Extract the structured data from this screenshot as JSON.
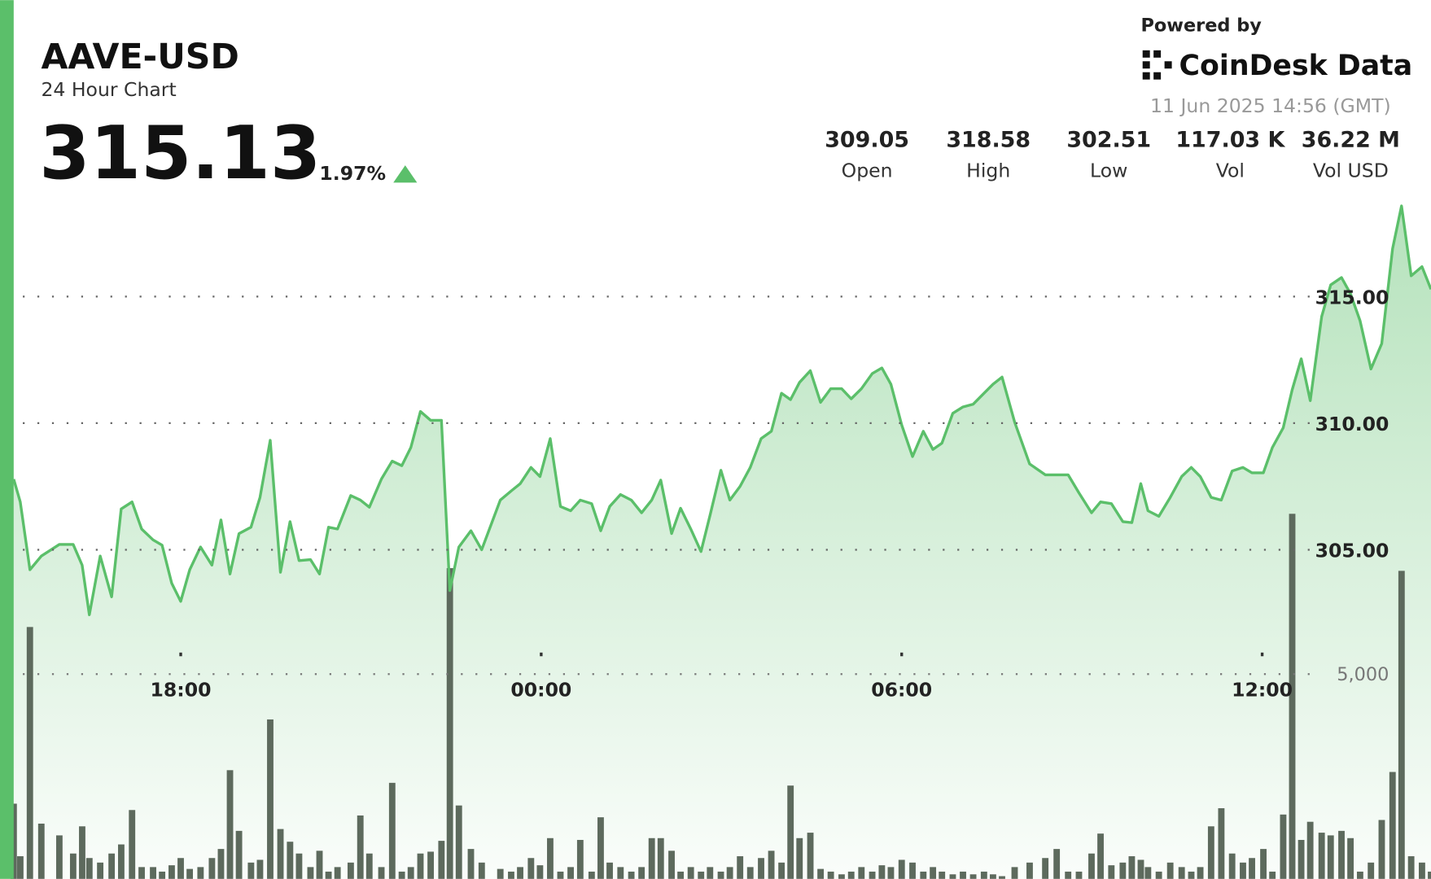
{
  "header": {
    "powered_by": "Powered by",
    "brand": "CoinDesk Data",
    "timestamp": "11 Jun 2025 14:56 (GMT)",
    "price": "315.13",
    "change": "1.97%"
  },
  "stats": [
    {
      "value": "309.05",
      "label": "Open"
    },
    {
      "value": "318.58",
      "label": "High"
    },
    {
      "value": "302.51",
      "label": "Low"
    },
    {
      "value": "117.03 K",
      "label": "Vol"
    },
    {
      "value": "36.22 M",
      "label": "Vol USD"
    }
  ],
  "chart_data": {
    "type": "line",
    "title": "AAVE-USD",
    "subtitle": "24 Hour Chart",
    "x": [
      -8.78,
      -8.67,
      -8.51,
      -8.32,
      -8.02,
      -7.79,
      -7.64,
      -7.52,
      -7.34,
      -7.15,
      -6.99,
      -6.81,
      -6.65,
      -6.46,
      -6.31,
      -6.15,
      -6.0,
      -5.85,
      -5.67,
      -5.48,
      -5.33,
      -5.18,
      -5.03,
      -4.83,
      -4.68,
      -4.51,
      -4.34,
      -4.18,
      -4.03,
      -3.84,
      -3.69,
      -3.54,
      -3.39,
      -3.17,
      -3.01,
      -2.86,
      -2.66,
      -2.48,
      -2.32,
      -2.17,
      -2.01,
      -1.84,
      -1.66,
      -1.52,
      -1.37,
      -1.17,
      -0.99,
      -0.68,
      -0.5,
      -0.35,
      -0.17,
      -0.02,
      0.15,
      0.32,
      0.49,
      0.65,
      0.84,
      0.99,
      1.14,
      1.32,
      1.5,
      1.67,
      1.84,
      1.99,
      2.17,
      2.32,
      2.49,
      2.66,
      2.81,
      2.99,
      3.14,
      3.31,
      3.48,
      3.66,
      3.83,
      4.0,
      4.15,
      4.3,
      4.48,
      4.65,
      4.82,
      5.0,
      5.16,
      5.33,
      5.51,
      5.67,
      5.82,
      6.0,
      6.18,
      6.36,
      6.52,
      6.67,
      6.85,
      7.02,
      7.19,
      7.37,
      7.52,
      7.67,
      7.88,
      8.13,
      8.39,
      8.58,
      8.77,
      8.95,
      9.16,
      9.31,
      9.49,
      9.68,
      9.83,
      9.98,
      10.1,
      10.28,
      10.47,
      10.66,
      10.82,
      10.97,
      11.15,
      11.32,
      11.5,
      11.68,
      11.83,
      12.02,
      12.17,
      12.35,
      12.5,
      12.65,
      12.8,
      12.99,
      13.14,
      13.32,
      13.47,
      13.63,
      13.81,
      13.99,
      14.17,
      14.32,
      14.48,
      14.66,
      14.81
    ],
    "series": [
      {
        "color": "#5bbf6a",
        "values": [
          307.79,
          306.89,
          304.21,
          304.75,
          305.21,
          305.21,
          304.39,
          302.43,
          304.75,
          303.14,
          306.61,
          306.89,
          305.82,
          305.39,
          305.18,
          303.68,
          302.96,
          304.21,
          305.11,
          304.39,
          306.18,
          304.04,
          305.64,
          305.89,
          307.07,
          309.32,
          304.11,
          306.11,
          304.57,
          304.61,
          304.04,
          305.89,
          305.82,
          307.14,
          306.96,
          306.68,
          307.79,
          308.5,
          308.32,
          309.04,
          310.46,
          310.11,
          310.11,
          303.39,
          305.11,
          305.75,
          305.0,
          306.96,
          307.32,
          307.61,
          308.25,
          307.89,
          309.39,
          306.71,
          306.54,
          306.96,
          306.82,
          305.75,
          306.71,
          307.18,
          306.96,
          306.46,
          306.96,
          307.75,
          305.64,
          306.64,
          305.82,
          304.93,
          306.36,
          308.14,
          306.96,
          307.5,
          308.25,
          309.39,
          309.68,
          311.18,
          310.93,
          311.61,
          312.07,
          310.82,
          311.36,
          311.36,
          310.96,
          311.36,
          311.96,
          312.18,
          311.54,
          309.93,
          308.68,
          309.68,
          308.96,
          309.21,
          310.39,
          310.64,
          310.75,
          311.18,
          311.54,
          311.82,
          310.04,
          308.39,
          307.96,
          307.96,
          307.96,
          307.25,
          306.46,
          306.89,
          306.82,
          306.11,
          306.07,
          307.61,
          306.54,
          306.32,
          307.07,
          307.89,
          308.25,
          307.89,
          307.07,
          306.96,
          308.11,
          308.25,
          308.04,
          308.04,
          309.04,
          309.82,
          311.32,
          312.54,
          310.89,
          314.21,
          315.46,
          315.75,
          315.11,
          314.04,
          312.14,
          313.14,
          316.89,
          318.58,
          315.82,
          316.18,
          315.29
        ]
      }
    ],
    "volume": {
      "color": "#5d6a5d",
      "axis": "y2",
      "values": [
        1836,
        553,
        6150,
        1349,
        1062,
        619,
        1283,
        509,
        398,
        619,
        841,
        1681,
        288,
        288,
        177,
        332,
        509,
        243,
        288,
        509,
        730,
        2654,
        1172,
        398,
        465,
        3893,
        1217,
        907,
        619,
        288,
        686,
        177,
        288,
        398,
        1548,
        619,
        288,
        2345,
        177,
        288,
        619,
        664,
        929,
        7587,
        1792,
        730,
        398,
        243,
        177,
        288,
        509,
        332,
        995,
        177,
        288,
        951,
        177,
        1504,
        398,
        288,
        177,
        288,
        995,
        995,
        686,
        177,
        288,
        177,
        288,
        177,
        288,
        553,
        288,
        509,
        686,
        398,
        2278,
        995,
        1128,
        243,
        177,
        111,
        177,
        288,
        177,
        332,
        288,
        465,
        398,
        177,
        288,
        177,
        111,
        177,
        111,
        177,
        111,
        66,
        288,
        398,
        509,
        730,
        177,
        177,
        619,
        1106,
        332,
        398,
        553,
        465,
        288,
        177,
        398,
        288,
        177,
        288,
        1283,
        1725,
        619,
        398,
        509,
        730,
        177,
        1571,
        8914,
        951,
        1394,
        1128,
        1062,
        1172,
        995,
        177,
        398,
        1438,
        2610,
        7521,
        553,
        398,
        177
      ]
    },
    "xlim": [
      -8.78,
      14.81
    ],
    "xticks": [
      {
        "value": -6,
        "label": "18:00"
      },
      {
        "value": 0,
        "label": "00:00"
      },
      {
        "value": 6,
        "label": "06:00"
      },
      {
        "value": 12,
        "label": "12:00"
      }
    ],
    "ylim": [
      292,
      319.5
    ],
    "yticks": [
      {
        "value": 305,
        "label": "305.00"
      },
      {
        "value": 310,
        "label": "310.00"
      },
      {
        "value": 315,
        "label": "315.00"
      }
    ],
    "y2lim": [
      0,
      17000
    ],
    "y2ticks": [
      {
        "value": 5000,
        "label": "5,000"
      }
    ],
    "grid": true
  }
}
